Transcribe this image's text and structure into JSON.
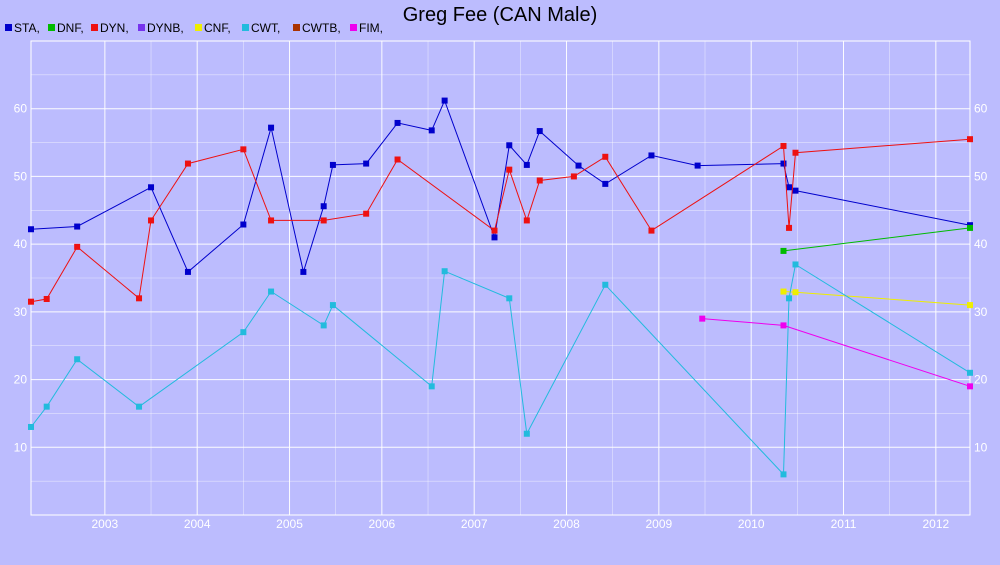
{
  "chart_data": {
    "type": "line",
    "title": "Greg Fee (CAN Male)",
    "xlabel": "",
    "ylabel": "",
    "xlim": [
      2002.2,
      2012.37
    ],
    "ylim": [
      0,
      70
    ],
    "grid": true,
    "legend_placement": "top-left",
    "x_ticks": [
      {
        "label": "2003",
        "value": 2003.0
      },
      {
        "label": "2004",
        "value": 2004.0
      },
      {
        "label": "2005",
        "value": 2005.0
      },
      {
        "label": "2006",
        "value": 2006.0
      },
      {
        "label": "2007",
        "value": 2007.0
      },
      {
        "label": "2008",
        "value": 2008.0
      },
      {
        "label": "2009",
        "value": 2009.0
      },
      {
        "label": "2010",
        "value": 2010.0
      },
      {
        "label": "2011",
        "value": 2011.0
      },
      {
        "label": "2012",
        "value": 2012.0
      }
    ],
    "y_ticks": [
      10,
      20,
      30,
      40,
      50,
      60
    ],
    "legend": [
      {
        "label": "STA,",
        "color": "#0000cc"
      },
      {
        "label": "DNF,",
        "color": "#00bb00"
      },
      {
        "label": "DYN,",
        "color": "#ee1111"
      },
      {
        "label": "DYNB,",
        "color": "#7733ee"
      },
      {
        "label": "CNF,",
        "color": "#eeee00"
      },
      {
        "label": "CWT,",
        "color": "#22bbdd"
      },
      {
        "label": "CWTB,",
        "color": "#aa3300"
      },
      {
        "label": "FIM,",
        "color": "#ee00ee"
      }
    ],
    "series": [
      {
        "name": "STA",
        "color": "#0000cc",
        "points": [
          [
            2002.2,
            42.2
          ],
          [
            2002.7,
            42.6
          ],
          [
            2003.5,
            48.4
          ],
          [
            2003.9,
            35.9
          ],
          [
            2004.5,
            42.9
          ],
          [
            2004.8,
            57.2
          ],
          [
            2005.15,
            35.9
          ],
          [
            2005.37,
            45.6
          ],
          [
            2005.47,
            51.7
          ],
          [
            2005.83,
            51.9
          ],
          [
            2006.17,
            57.9
          ],
          [
            2006.54,
            56.8
          ],
          [
            2006.68,
            61.2
          ],
          [
            2007.22,
            41.0
          ],
          [
            2007.38,
            54.6
          ],
          [
            2007.57,
            51.7
          ],
          [
            2007.71,
            56.7
          ],
          [
            2008.13,
            51.6
          ],
          [
            2008.42,
            48.9
          ],
          [
            2008.92,
            53.1
          ],
          [
            2009.42,
            51.6
          ],
          [
            2010.35,
            51.9
          ],
          [
            2010.41,
            48.4
          ],
          [
            2010.48,
            47.9
          ],
          [
            2012.37,
            42.8
          ]
        ]
      },
      {
        "name": "DNF",
        "color": "#00bb00",
        "points": [
          [
            2010.35,
            39.0
          ],
          [
            2012.37,
            42.4
          ]
        ]
      },
      {
        "name": "DYN",
        "color": "#ee1111",
        "points": [
          [
            2002.2,
            31.5
          ],
          [
            2002.37,
            31.9
          ],
          [
            2002.7,
            39.6
          ],
          [
            2003.37,
            32.0
          ],
          [
            2003.5,
            43.5
          ],
          [
            2003.9,
            51.9
          ],
          [
            2004.5,
            54.0
          ],
          [
            2004.8,
            43.5
          ],
          [
            2005.37,
            43.5
          ],
          [
            2005.83,
            44.5
          ],
          [
            2006.17,
            52.5
          ],
          [
            2007.22,
            42.0
          ],
          [
            2007.38,
            51.0
          ],
          [
            2007.57,
            43.5
          ],
          [
            2007.71,
            49.4
          ],
          [
            2008.08,
            50.0
          ],
          [
            2008.42,
            52.9
          ],
          [
            2008.92,
            42.0
          ],
          [
            2010.35,
            54.5
          ],
          [
            2010.41,
            42.4
          ],
          [
            2010.48,
            53.5
          ],
          [
            2012.37,
            55.5
          ]
        ]
      },
      {
        "name": "CNF",
        "color": "#eeee00",
        "points": [
          [
            2010.35,
            33.0
          ],
          [
            2010.48,
            32.9
          ],
          [
            2012.37,
            31.0
          ]
        ]
      },
      {
        "name": "CWT",
        "color": "#22bbdd",
        "points": [
          [
            2002.2,
            13.0
          ],
          [
            2002.37,
            16.0
          ],
          [
            2002.7,
            23.0
          ],
          [
            2003.37,
            16.0
          ],
          [
            2004.5,
            27.0
          ],
          [
            2004.8,
            33.0
          ],
          [
            2005.37,
            28.0
          ],
          [
            2005.47,
            31.0
          ],
          [
            2006.54,
            19.0
          ],
          [
            2006.68,
            36.0
          ],
          [
            2007.38,
            32.0
          ],
          [
            2007.57,
            12.0
          ],
          [
            2008.42,
            34.0
          ],
          [
            2010.35,
            6.0
          ],
          [
            2010.41,
            32.0
          ],
          [
            2010.48,
            37.0
          ],
          [
            2012.37,
            21.0
          ]
        ]
      },
      {
        "name": "FIM",
        "color": "#ee00ee",
        "points": [
          [
            2009.47,
            29.0
          ],
          [
            2010.35,
            28.0
          ],
          [
            2012.37,
            19.0
          ]
        ]
      }
    ]
  }
}
